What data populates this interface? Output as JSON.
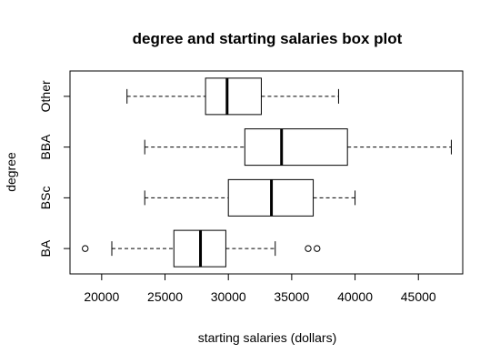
{
  "chart_data": {
    "type": "boxplot",
    "orientation": "horizontal",
    "title": "degree and starting salaries box plot",
    "xlabel": "starting salaries (dollars)",
    "ylabel": "degree",
    "xlim": [
      17500,
      48500
    ],
    "xticks": [
      20000,
      25000,
      30000,
      35000,
      40000,
      45000
    ],
    "xtick_labels": [
      "20000",
      "25000",
      "30000",
      "35000",
      "40000",
      "45000"
    ],
    "categories": [
      "BA",
      "BSc",
      "BBA",
      "Other"
    ],
    "boxes": [
      {
        "category": "BA",
        "whisker_low": 20800,
        "q1": 25700,
        "median": 27800,
        "q3": 29800,
        "whisker_high": 33700,
        "outliers": [
          18700,
          36300,
          37000
        ]
      },
      {
        "category": "BSc",
        "whisker_low": 23400,
        "q1": 30000,
        "median": 33400,
        "q3": 36700,
        "whisker_high": 40000,
        "outliers": []
      },
      {
        "category": "BBA",
        "whisker_low": 23400,
        "q1": 31300,
        "median": 34200,
        "q3": 39400,
        "whisker_high": 47600,
        "outliers": []
      },
      {
        "category": "Other",
        "whisker_low": 22000,
        "q1": 28200,
        "median": 29900,
        "q3": 32600,
        "whisker_high": 38700,
        "outliers": []
      }
    ],
    "grid": false,
    "legend": "none"
  }
}
